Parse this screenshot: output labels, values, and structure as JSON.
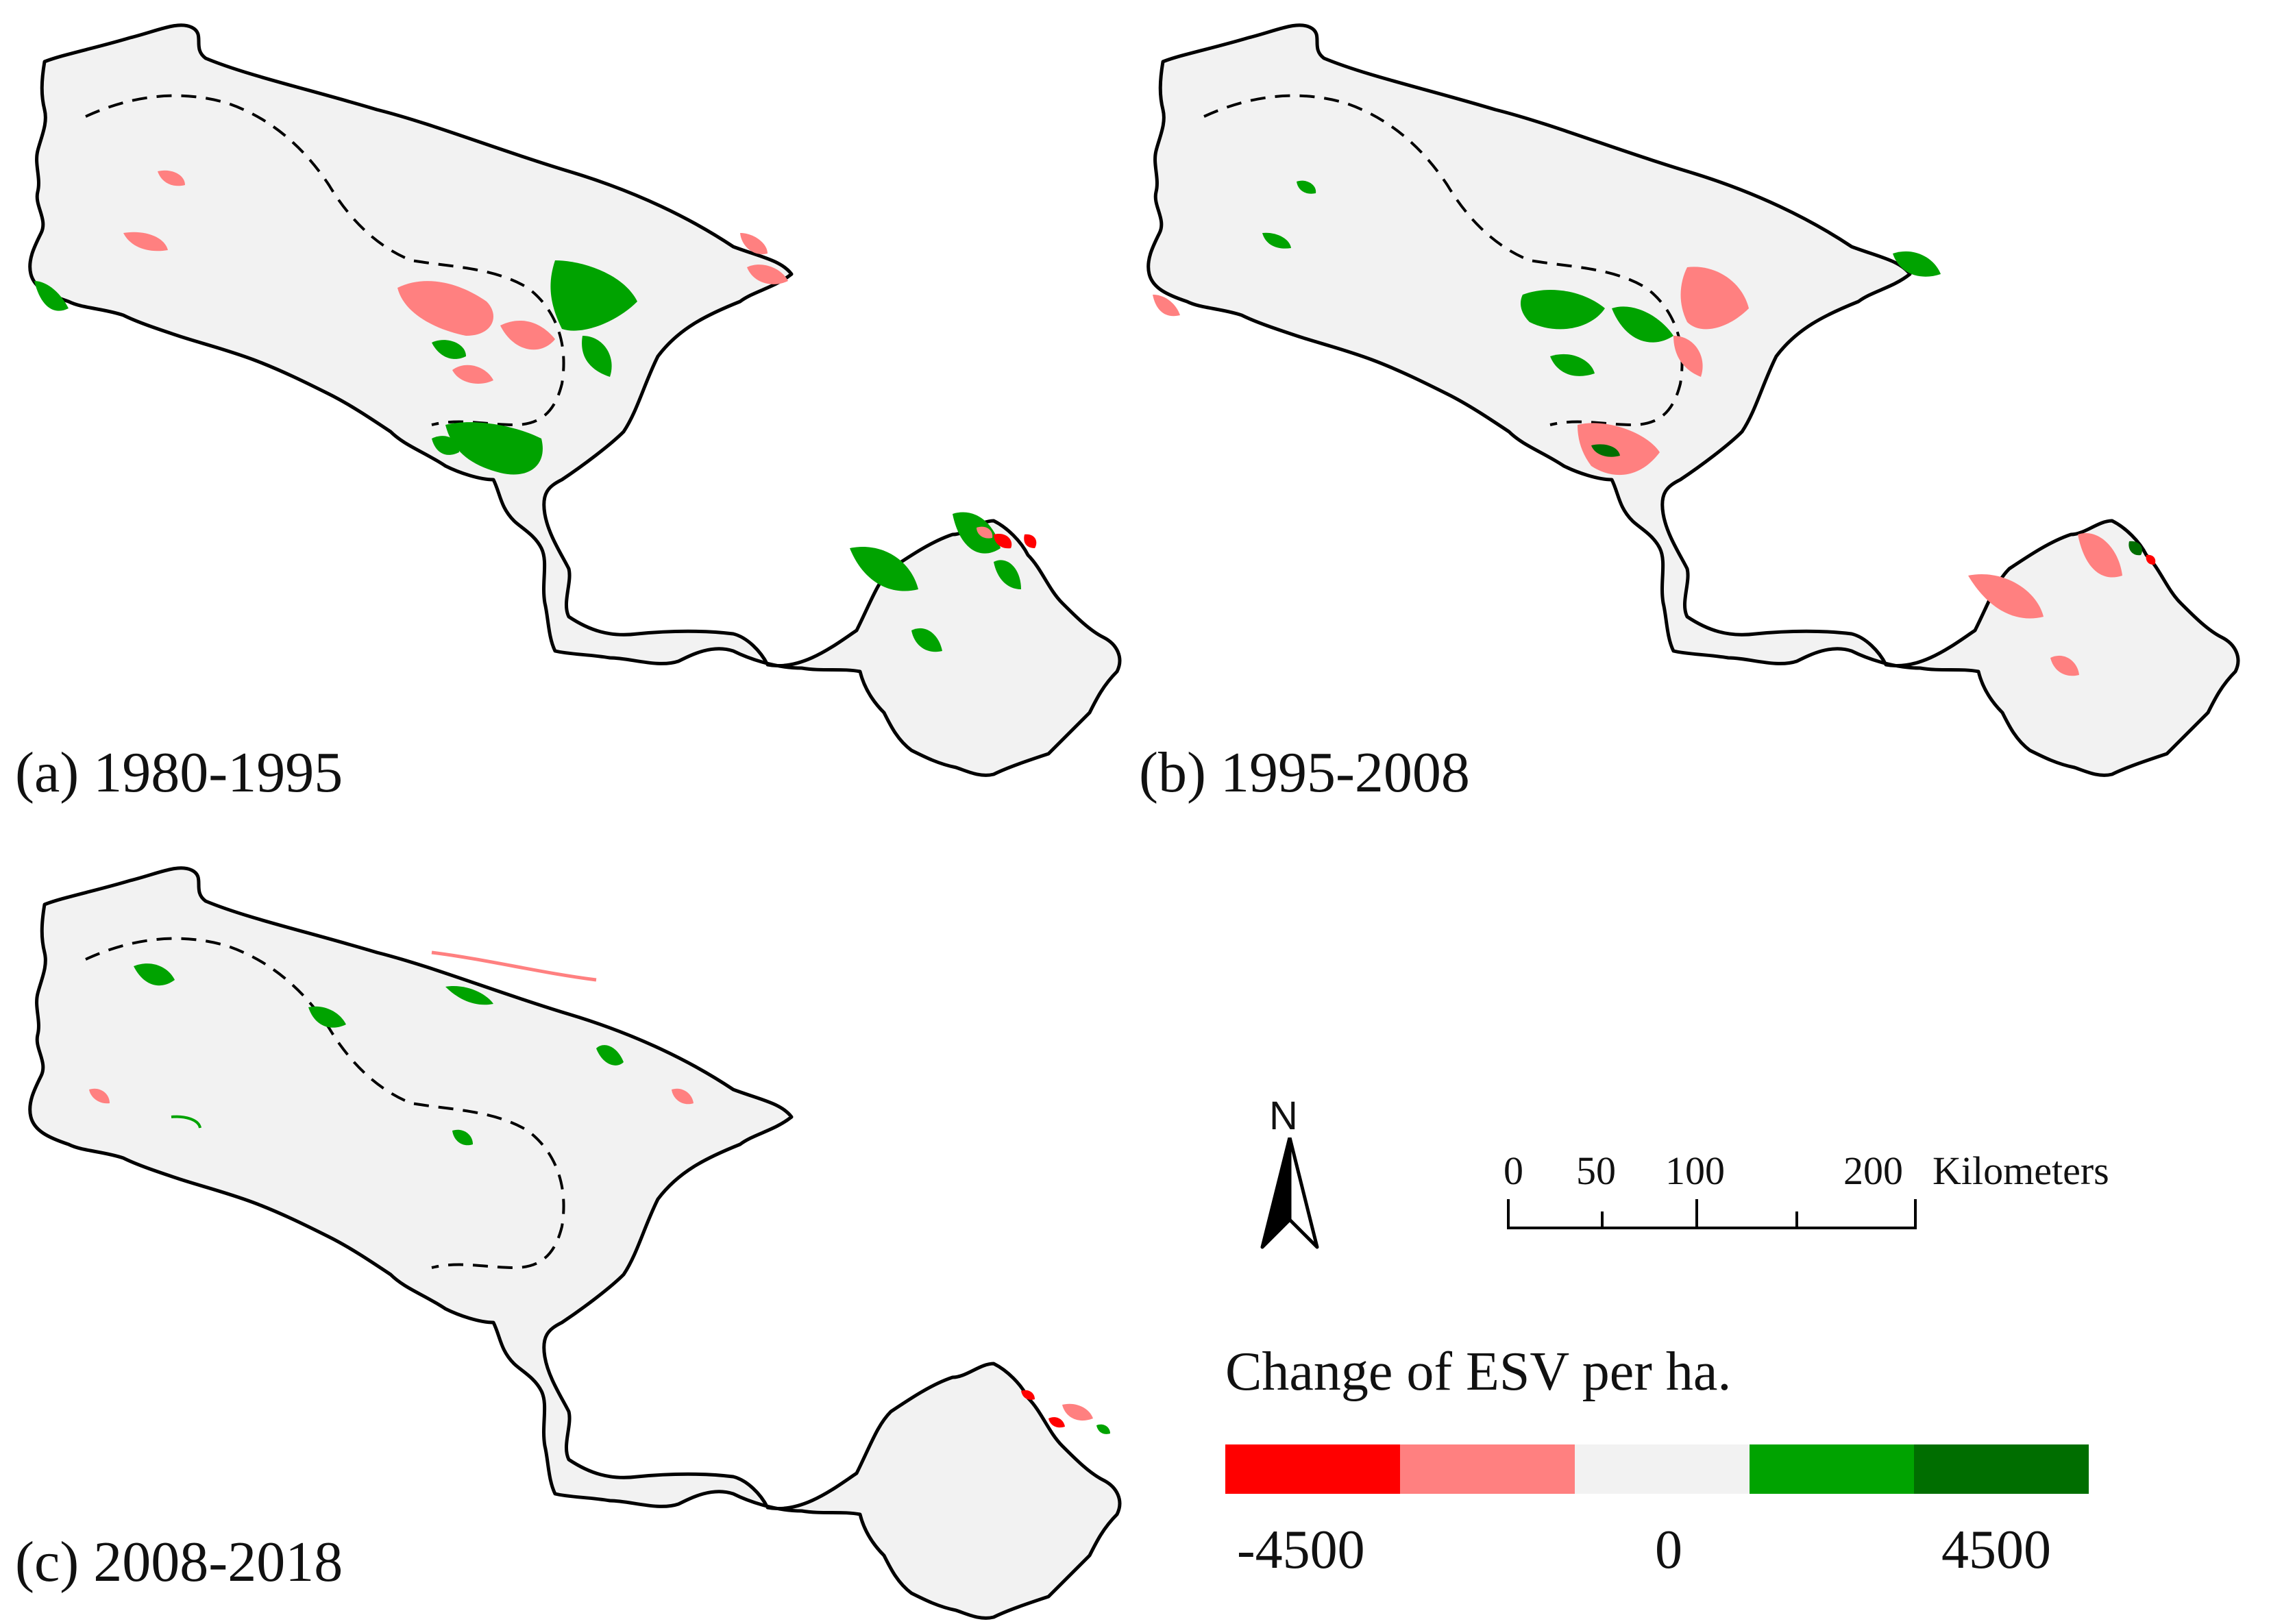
{
  "panels": [
    {
      "id": "a",
      "caption": "(a) 1980-1995"
    },
    {
      "id": "b",
      "caption": "(b) 1995-2008"
    },
    {
      "id": "c",
      "caption": "(c) 2008-2018"
    }
  ],
  "legend": {
    "title": "Change of ESV per ha.",
    "labels": [
      "-4500",
      "0",
      "4500"
    ],
    "colors": [
      "#ff0000",
      "#ff8080",
      "#f2f2f2",
      "#00a300",
      "#006e00"
    ]
  },
  "north_arrow": {
    "letter": "N"
  },
  "scale_bar": {
    "ticks": [
      "0",
      "50",
      "100",
      "200"
    ],
    "unit": "Kilometers"
  },
  "map_colors": {
    "background": "#f2f2f2",
    "boundary": "#000000",
    "dark_red": "#ff0000",
    "light_red": "#ff8080",
    "green": "#00a300",
    "dark_green": "#006e00"
  }
}
